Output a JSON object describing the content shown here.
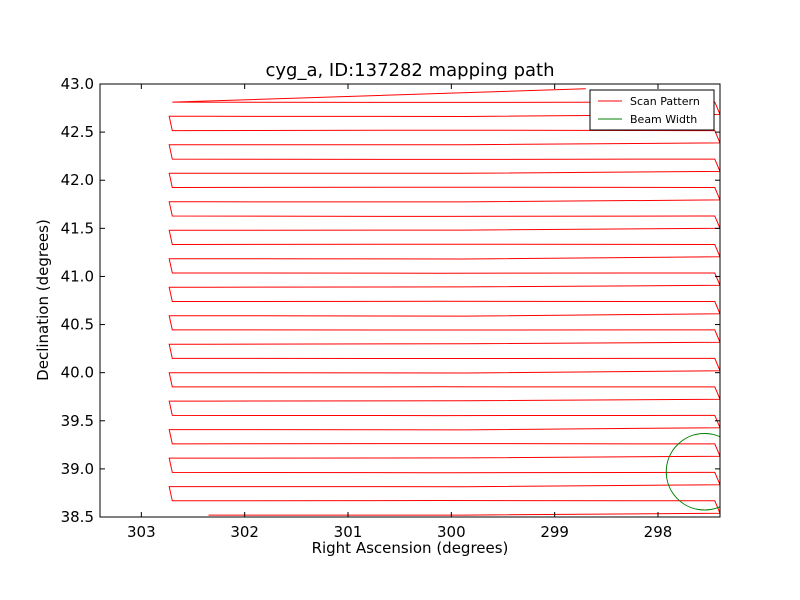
{
  "chart_data": {
    "type": "line",
    "title": "cyg_a, ID:137282 mapping path",
    "xlabel": "Right Ascension (degrees)",
    "ylabel": "Declination (degrees)",
    "xlim": [
      303.4,
      297.4
    ],
    "ylim": [
      38.5,
      43.0
    ],
    "x_ticks": [
      303,
      302,
      301,
      300,
      299,
      298
    ],
    "y_ticks": [
      38.5,
      39.0,
      39.5,
      40.0,
      40.5,
      41.0,
      41.5,
      42.0,
      42.5,
      43.0
    ],
    "x_tick_labels": [
      "303",
      "302",
      "301",
      "300",
      "299",
      "298"
    ],
    "y_tick_labels": [
      "38.5",
      "39.0",
      "39.5",
      "40.0",
      "40.5",
      "41.0",
      "41.5",
      "42.0",
      "42.5",
      "43.0"
    ],
    "grid": false,
    "legend_position": "top-right",
    "scan": {
      "ra_left": 302.7,
      "ra_right": 297.4,
      "ra_left_inner": 302.35,
      "ra_right_inner": 297.55,
      "dec_bottom": 38.52,
      "dec_top": 42.95,
      "line_spacing": 0.148,
      "end_ra": 298.7
    },
    "beam": {
      "ra": 297.55,
      "dec": 38.97,
      "radius": 0.37
    },
    "series": [
      {
        "name": "Scan Pattern",
        "color": "#ff0000"
      },
      {
        "name": "Beam Width",
        "color": "#008000"
      }
    ]
  }
}
